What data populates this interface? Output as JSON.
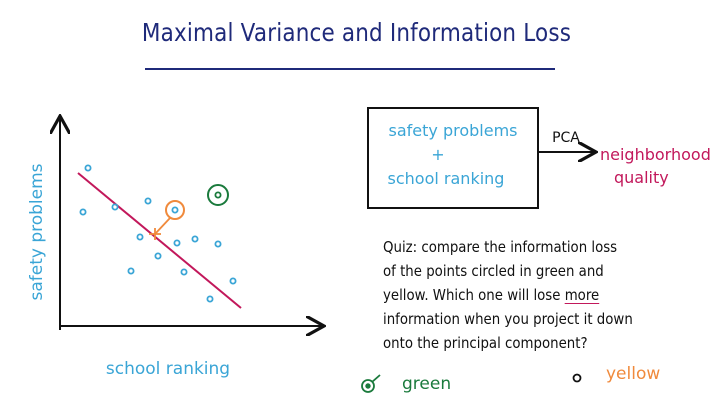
{
  "title": "Maximal Variance and Information Loss",
  "plot": {
    "y_axis_label": "safety problems",
    "x_axis_label": "school ranking"
  },
  "box": {
    "line1": "safety problems",
    "line2": "+",
    "line3": "school ranking"
  },
  "arrow_label": "PCA",
  "output": {
    "line1": "neighborhood",
    "line2": "quality"
  },
  "quiz": {
    "line1": "Quiz: compare the information loss",
    "line2": "of the points circled in green and",
    "line3_pre": "yellow. Which one will lose ",
    "line3_em": "more",
    "line4": "information when you project it down",
    "line5": "onto the principal component?"
  },
  "answers": {
    "green": "green",
    "yellow": "yellow"
  },
  "colors": {
    "title": "#1f2a7a",
    "blue": "#3aa5d6",
    "line": "#c2185b",
    "green": "#1a7a3c",
    "orange": "#f08a3c"
  }
}
